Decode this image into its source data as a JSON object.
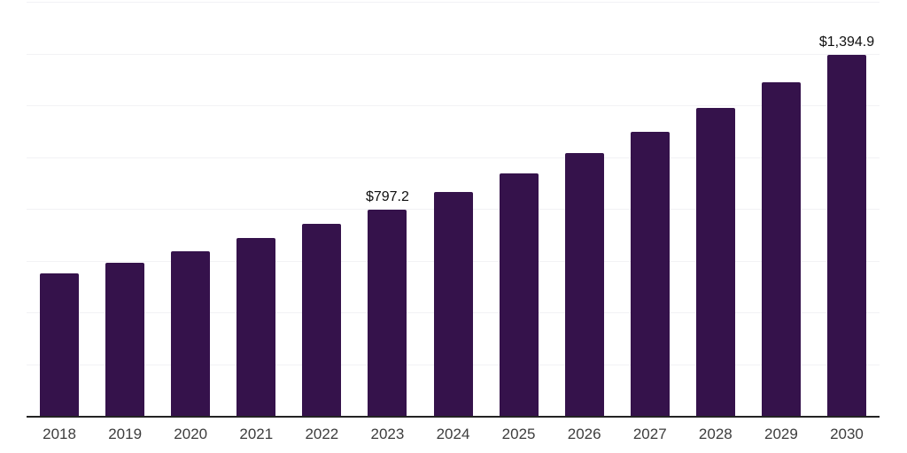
{
  "chart_data": {
    "type": "bar",
    "title": "",
    "xlabel": "",
    "ylabel": "",
    "categories": [
      "2018",
      "2019",
      "2020",
      "2021",
      "2022",
      "2023",
      "2024",
      "2025",
      "2026",
      "2027",
      "2028",
      "2029",
      "2030"
    ],
    "values": [
      549.0,
      590.0,
      635.0,
      686.0,
      741.0,
      797.2,
      866.0,
      937.0,
      1015.0,
      1097.0,
      1189.0,
      1290.0,
      1394.9
    ],
    "point_labels": [
      "",
      "",
      "",
      "",
      "",
      "$797.2",
      "",
      "",
      "",
      "",
      "",
      "",
      "$1,394.9"
    ],
    "ylim": [
      0,
      1600
    ],
    "gridline_interval": 200,
    "grid": "horizontal-only",
    "legend_position": "none",
    "colors": {
      "bar": "#35124B",
      "axis_line": "#232323",
      "gridline": "#f2f2f5",
      "point_label_text": "#0f0f0f",
      "tick_label_text": "#3d3d3d",
      "background": "#ffffff"
    }
  }
}
